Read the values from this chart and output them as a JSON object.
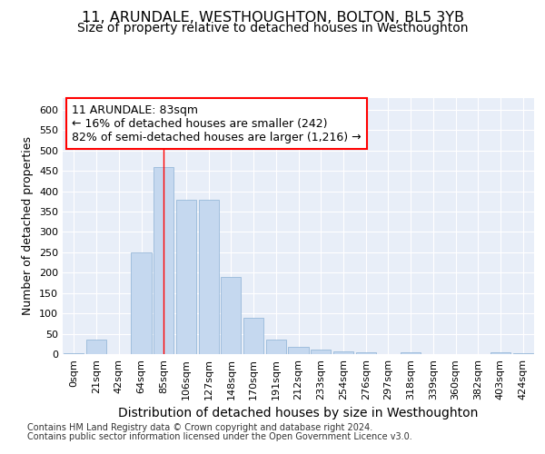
{
  "title": "11, ARUNDALE, WESTHOUGHTON, BOLTON, BL5 3YB",
  "subtitle": "Size of property relative to detached houses in Westhoughton",
  "xlabel": "Distribution of detached houses by size in Westhoughton",
  "ylabel": "Number of detached properties",
  "categories": [
    "0sqm",
    "21sqm",
    "42sqm",
    "64sqm",
    "85sqm",
    "106sqm",
    "127sqm",
    "148sqm",
    "170sqm",
    "191sqm",
    "212sqm",
    "233sqm",
    "254sqm",
    "276sqm",
    "297sqm",
    "318sqm",
    "339sqm",
    "360sqm",
    "382sqm",
    "403sqm",
    "424sqm"
  ],
  "values": [
    2,
    35,
    1,
    250,
    460,
    380,
    380,
    190,
    90,
    35,
    18,
    12,
    6,
    5,
    1,
    4,
    0,
    0,
    0,
    4,
    2
  ],
  "bar_color": "#c5d8ef",
  "bar_edge_color": "#8ab0d4",
  "red_line_index": 4,
  "annotation_text": "11 ARUNDALE: 83sqm\n← 16% of detached houses are smaller (242)\n82% of semi-detached houses are larger (1,216) →",
  "ylim": [
    0,
    630
  ],
  "yticks": [
    0,
    50,
    100,
    150,
    200,
    250,
    300,
    350,
    400,
    450,
    500,
    550,
    600
  ],
  "axes_bg": "#e8eef8",
  "grid_color": "#ffffff",
  "footer_line1": "Contains HM Land Registry data © Crown copyright and database right 2024.",
  "footer_line2": "Contains public sector information licensed under the Open Government Licence v3.0.",
  "title_fontsize": 11.5,
  "subtitle_fontsize": 10,
  "xlabel_fontsize": 10,
  "ylabel_fontsize": 9,
  "tick_fontsize": 8,
  "annot_fontsize": 9,
  "footer_fontsize": 7
}
